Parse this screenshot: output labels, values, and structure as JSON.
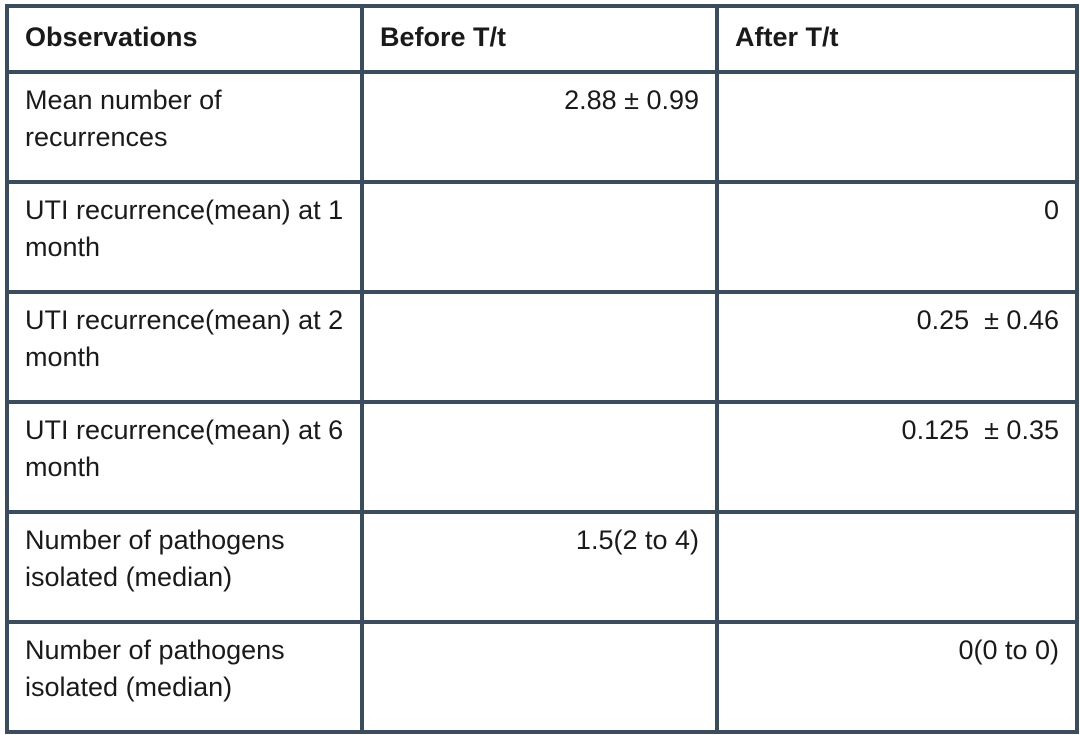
{
  "table": {
    "headers": [
      "Observations",
      "Before T/t",
      "After T/t"
    ],
    "rows": [
      [
        "Mean number of recurrences",
        "2.88 ± 0.99",
        null
      ],
      [
        "UTI recurrence(mean) at 1 month",
        null,
        "0"
      ],
      [
        "UTI recurrence(mean) at 2 month",
        null,
        "0.25  ± 0.46"
      ],
      [
        "UTI recurrence(mean) at 6 month",
        null,
        "0.125  ± 0.35"
      ],
      [
        "Number of pathogens isolated (median)",
        "1.5(2 to 4)",
        null
      ],
      [
        "Number of pathogens isolated (median)",
        null,
        "0(0 to 0)"
      ]
    ]
  }
}
